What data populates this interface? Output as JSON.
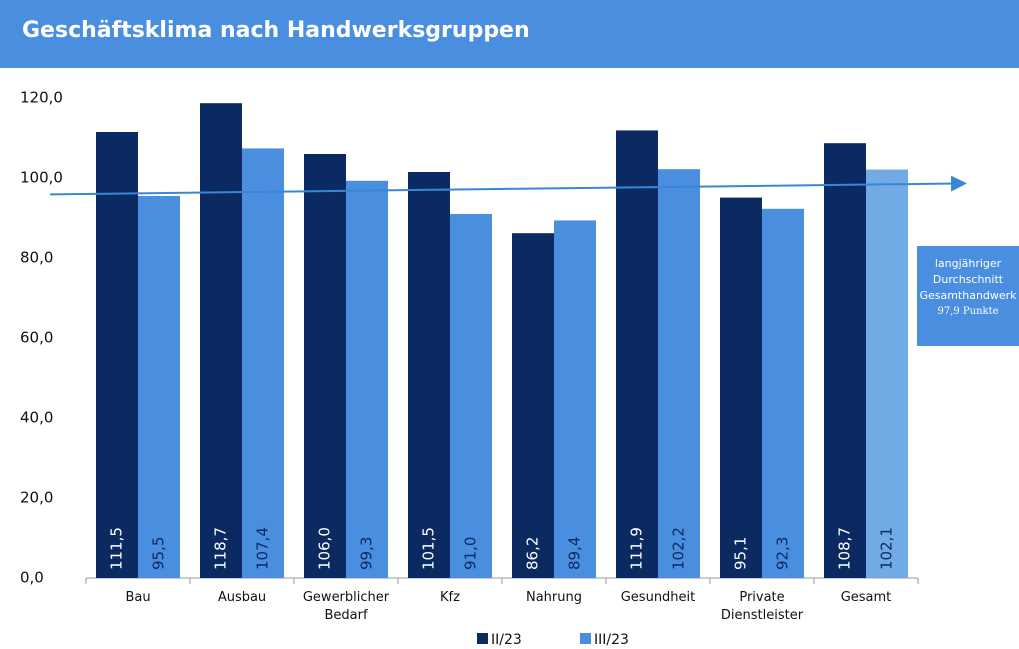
{
  "chart_data": {
    "type": "bar",
    "title": "Geschäftsklima nach Handwerksgruppen",
    "categories": [
      "Bau",
      "Ausbau",
      "Gewerblicher Bedarf",
      "Kfz",
      "Nahrung",
      "Gesundheit",
      "Private Dienstleister",
      "Gesamt"
    ],
    "series": [
      {
        "name": "II/23",
        "color": "#0c2a62",
        "values": [
          111.5,
          118.7,
          106.0,
          101.5,
          86.2,
          111.9,
          95.1,
          108.7
        ],
        "value_labels": [
          "111,5",
          "118,7",
          "106,0",
          "101,5",
          "86,2",
          "111,9",
          "95,1",
          "108,7"
        ]
      },
      {
        "name": "III/23",
        "color": "#4a8edf",
        "point_colors": [
          "#4a8edf",
          "#4a8edf",
          "#4a8edf",
          "#4a8edf",
          "#4a8edf",
          "#4a8edf",
          "#4a8edf",
          "#72aae6"
        ],
        "values": [
          95.5,
          107.4,
          99.3,
          91.0,
          89.4,
          102.2,
          92.3,
          102.1
        ],
        "value_labels": [
          "95,5",
          "107,4",
          "99,3",
          "91,0",
          "89,4",
          "102,2",
          "92,3",
          "102,1"
        ]
      }
    ],
    "ylim": [
      0,
      120
    ],
    "yticks": [
      {
        "value": 0,
        "label": "0,0"
      },
      {
        "value": 20,
        "label": "20,0"
      },
      {
        "value": 40,
        "label": "40,0"
      },
      {
        "value": 60,
        "label": "60,0"
      },
      {
        "value": 80,
        "label": "80,0"
      },
      {
        "value": 100,
        "label": "100,0"
      },
      {
        "value": 120,
        "label": "120,0"
      }
    ],
    "average": 97.9,
    "annotation": [
      "langjähriger",
      "Durchschnitt",
      "Gesamthandwerk",
      "97,9 Punkte"
    ],
    "legend": "bottom"
  }
}
